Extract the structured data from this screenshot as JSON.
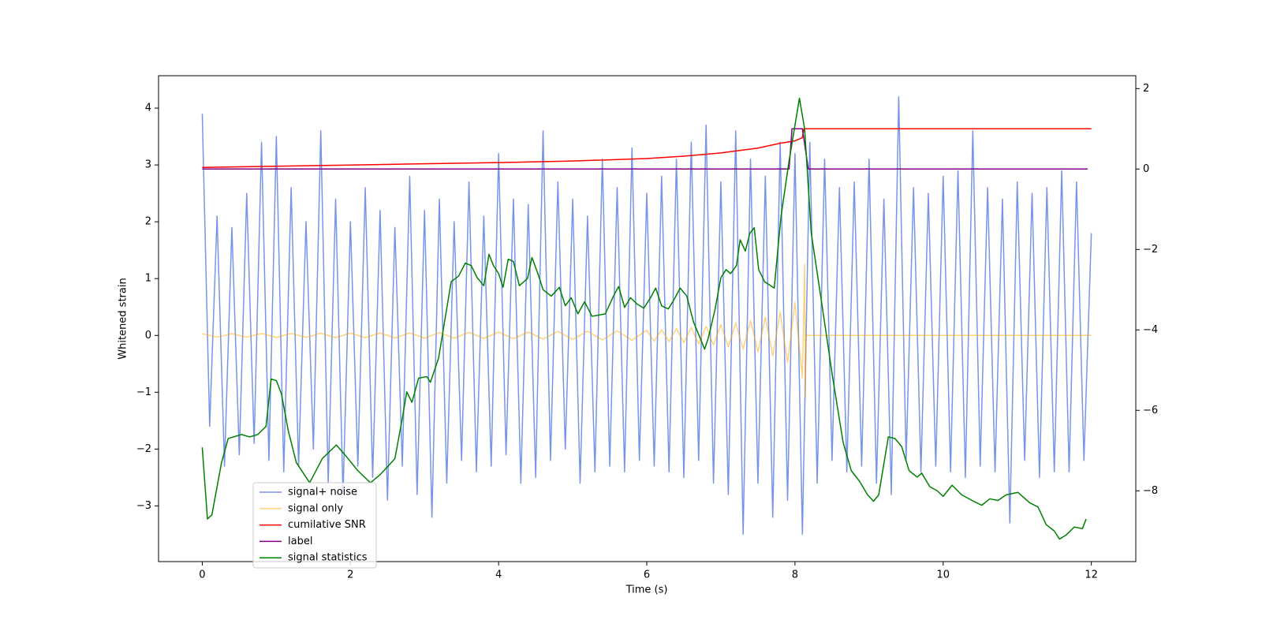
{
  "chart_data": {
    "type": "line",
    "xlabel": "Time (s)",
    "ylabel": "Whitened strain",
    "xlim": [
      -0.59,
      12.6
    ],
    "ylim": [
      -3.98,
      4.57
    ],
    "y2lim": [
      -9.76,
      2.32
    ],
    "xticks": [
      0,
      2,
      4,
      6,
      8,
      10,
      12
    ],
    "yticks": [
      {
        "value": -3,
        "label": "−3"
      },
      {
        "value": -2,
        "label": "−2"
      },
      {
        "value": -1,
        "label": "−1"
      },
      0,
      1,
      2,
      3,
      4
    ],
    "y2ticks": [
      {
        "value": -8,
        "label": "−8"
      },
      {
        "value": -6,
        "label": "−6"
      },
      {
        "value": -4,
        "label": "−4"
      },
      {
        "value": -2,
        "label": "−2"
      },
      0,
      2
    ],
    "legend": "lower left",
    "series": [
      {
        "name": "signal+ noise",
        "color": "#7794e8",
        "x": [
          0,
          0.1,
          0.2,
          0.3,
          0.4,
          0.5,
          0.6,
          0.7,
          0.8,
          0.9,
          1,
          1.1,
          1.2,
          1.3,
          1.4,
          1.5,
          1.6,
          1.7,
          1.8,
          1.9,
          2,
          2.1,
          2.2,
          2.3,
          2.4,
          2.5,
          2.6,
          2.7,
          2.8,
          2.9,
          3,
          3.1,
          3.2,
          3.3,
          3.4,
          3.5,
          3.6,
          3.7,
          3.8,
          3.9,
          4,
          4.1,
          4.2,
          4.3,
          4.4,
          4.5,
          4.6,
          4.7,
          4.8,
          4.9,
          5,
          5.1,
          5.2,
          5.3,
          5.4,
          5.5,
          5.6,
          5.7,
          5.8,
          5.9,
          6,
          6.1,
          6.2,
          6.3,
          6.4,
          6.5,
          6.6,
          6.7,
          6.8,
          6.9,
          7,
          7.1,
          7.2,
          7.3,
          7.4,
          7.5,
          7.6,
          7.7,
          7.8,
          7.9,
          8,
          8.1,
          8.2,
          8.3,
          8.4,
          8.5,
          8.6,
          8.7,
          8.8,
          8.9,
          9,
          9.1,
          9.2,
          9.3,
          9.4,
          9.5,
          9.6,
          9.7,
          9.8,
          9.9,
          10,
          10.1,
          10.2,
          10.3,
          10.4,
          10.5,
          10.6,
          10.7,
          10.8,
          10.9,
          11,
          11.1,
          11.2,
          11.3,
          11.4,
          11.5,
          11.6,
          11.7,
          11.8,
          11.9,
          12
        ],
        "values": [
          3.9,
          -1.6,
          2.1,
          -2.3,
          1.9,
          -2.1,
          2.5,
          -1.9,
          3.4,
          -2.2,
          3.5,
          -2.4,
          2.6,
          -2.3,
          2.0,
          -2.0,
          3.6,
          -2.6,
          2.4,
          -2.8,
          2.0,
          -2.3,
          2.6,
          -2.5,
          2.2,
          -2.9,
          1.9,
          -2.3,
          2.8,
          -2.8,
          2.2,
          -3.2,
          2.4,
          -2.6,
          2.0,
          -2.2,
          2.7,
          -2.4,
          2.1,
          -2.3,
          3.2,
          -2.1,
          2.4,
          -2.6,
          2.3,
          -2.5,
          3.6,
          -2.2,
          2.7,
          -2.0,
          2.4,
          -2.6,
          2.1,
          -2.4,
          3.1,
          -2.3,
          2.6,
          -2.4,
          3.3,
          -2.2,
          2.5,
          -2.3,
          2.8,
          -2.4,
          3.1,
          -2.5,
          3.4,
          -2.2,
          3.7,
          -2.6,
          2.7,
          -2.8,
          3.6,
          -3.5,
          3.1,
          -2.6,
          2.8,
          -3.2,
          3.4,
          -2.9,
          3.2,
          -3.5,
          3.4,
          -2.6,
          3.1,
          -2.2,
          2.6,
          -2.4,
          2.7,
          -2.3,
          3.1,
          -2.6,
          2.4,
          -2.8,
          4.2,
          -2.2,
          2.6,
          -2.4,
          2.5,
          -2.3,
          2.8,
          -2.4,
          2.9,
          -2.5,
          3.6,
          -2.3,
          2.6,
          -2.4,
          2.4,
          -3.3,
          2.7,
          -2.2,
          2.5,
          -2.5,
          2.6,
          -2.4,
          2.9,
          -2.4,
          2.7,
          -2.2,
          1.8
        ]
      },
      {
        "name": "signal only",
        "color": "#ffa500",
        "x": [
          0,
          0.2,
          0.4,
          0.6,
          0.8,
          1,
          1.2,
          1.4,
          1.6,
          1.8,
          2,
          2.2,
          2.4,
          2.6,
          2.8,
          3,
          3.2,
          3.4,
          3.6,
          3.8,
          4,
          4.2,
          4.4,
          4.6,
          4.8,
          5,
          5.2,
          5.4,
          5.6,
          5.8,
          6,
          6.1,
          6.2,
          6.3,
          6.4,
          6.5,
          6.6,
          6.7,
          6.8,
          6.9,
          7,
          7.1,
          7.2,
          7.3,
          7.4,
          7.5,
          7.6,
          7.7,
          7.8,
          7.9,
          8,
          8.1,
          8.13,
          8.14,
          8.15,
          12
        ],
        "values": [
          0.03,
          -0.03,
          0.03,
          -0.03,
          0.035,
          -0.035,
          0.035,
          -0.035,
          0.04,
          -0.04,
          0.04,
          -0.04,
          0.045,
          -0.045,
          0.045,
          -0.05,
          0.05,
          -0.05,
          0.055,
          -0.055,
          0.06,
          -0.06,
          0.06,
          -0.065,
          0.07,
          -0.07,
          0.075,
          -0.08,
          0.08,
          -0.085,
          0.09,
          -0.1,
          0.1,
          -0.11,
          0.12,
          -0.13,
          0.14,
          -0.15,
          0.16,
          -0.17,
          0.19,
          -0.2,
          0.22,
          -0.24,
          0.26,
          -0.29,
          0.32,
          -0.36,
          0.41,
          -0.48,
          0.58,
          -0.75,
          1.25,
          -1.1,
          0,
          0
        ]
      },
      {
        "name": "cumilative SNR",
        "color": "#ff0000",
        "axis": "y2",
        "x": [
          0,
          1,
          2,
          3,
          4,
          5,
          6,
          6.5,
          7,
          7.5,
          7.8,
          8.0,
          8.1,
          8.12,
          12
        ],
        "values": [
          0.04,
          0.07,
          0.1,
          0.13,
          0.16,
          0.2,
          0.26,
          0.32,
          0.4,
          0.52,
          0.64,
          0.7,
          0.78,
          1.0,
          1.0
        ]
      },
      {
        "name": "label",
        "color": "#800080",
        "axis": "y2",
        "x": [
          0,
          7.92,
          7.96,
          8.1,
          8.18,
          11.95
        ],
        "values": [
          0,
          0,
          1,
          1,
          0,
          0
        ]
      },
      {
        "name": "signal statistics",
        "color": "#008000",
        "axis": "y2",
        "x": [
          0,
          0.07,
          0.13,
          0.26,
          0.35,
          0.53,
          0.64,
          0.75,
          0.86,
          0.93,
          1.0,
          1.07,
          1.16,
          1.27,
          1.45,
          1.62,
          1.81,
          1.95,
          2.1,
          2.27,
          2.4,
          2.6,
          2.7,
          2.76,
          2.83,
          2.92,
          3.03,
          3.08,
          3.19,
          3.27,
          3.36,
          3.46,
          3.55,
          3.63,
          3.71,
          3.8,
          3.87,
          3.93,
          4.0,
          4.06,
          4.13,
          4.2,
          4.28,
          4.39,
          4.45,
          4.53,
          4.6,
          4.71,
          4.82,
          4.9,
          4.98,
          5.07,
          5.16,
          5.26,
          5.33,
          5.44,
          5.55,
          5.62,
          5.7,
          5.78,
          5.87,
          5.96,
          6.05,
          6.12,
          6.2,
          6.29,
          6.37,
          6.45,
          6.54,
          6.63,
          6.72,
          6.78,
          6.83,
          6.92,
          7.0,
          7.07,
          7.13,
          7.21,
          7.26,
          7.33,
          7.39,
          7.45,
          7.51,
          7.59,
          7.72,
          7.81,
          7.92,
          8.06,
          8.13,
          8.22,
          8.35,
          8.51,
          8.65,
          8.76,
          8.87,
          8.98,
          9.06,
          9.13,
          9.26,
          9.35,
          9.44,
          9.54,
          9.65,
          9.71,
          9.82,
          9.92,
          10.0,
          10.12,
          10.25,
          10.39,
          10.52,
          10.63,
          10.74,
          10.85,
          11.01,
          11.17,
          11.28,
          11.39,
          11.5,
          11.57,
          11.66,
          11.77,
          11.88,
          11.93
        ],
        "values": [
          -6.92,
          -8.7,
          -8.6,
          -7.3,
          -6.7,
          -6.6,
          -6.66,
          -6.6,
          -6.4,
          -5.22,
          -5.26,
          -5.6,
          -6.5,
          -7.3,
          -7.8,
          -7.2,
          -6.86,
          -7.16,
          -7.5,
          -7.8,
          -7.6,
          -7.2,
          -6.2,
          -5.54,
          -5.8,
          -5.2,
          -5.16,
          -5.3,
          -4.7,
          -3.8,
          -2.8,
          -2.66,
          -2.34,
          -2.4,
          -2.7,
          -2.9,
          -2.12,
          -2.4,
          -2.6,
          -2.94,
          -2.24,
          -2.3,
          -2.9,
          -2.72,
          -2.2,
          -2.6,
          -3.0,
          -3.16,
          -2.94,
          -3.4,
          -3.2,
          -3.6,
          -3.3,
          -3.66,
          -3.64,
          -3.6,
          -3.16,
          -2.92,
          -3.44,
          -3.2,
          -3.36,
          -3.46,
          -3.2,
          -2.96,
          -3.4,
          -3.48,
          -3.24,
          -2.96,
          -3.16,
          -3.8,
          -4.2,
          -4.48,
          -4.2,
          -3.5,
          -2.7,
          -2.5,
          -2.6,
          -2.4,
          -1.76,
          -2.04,
          -1.6,
          -1.46,
          -2.5,
          -2.8,
          -2.96,
          -1.2,
          0.2,
          1.76,
          1.0,
          -1.6,
          -3.2,
          -5.2,
          -6.8,
          -7.5,
          -7.76,
          -8.1,
          -8.26,
          -8.1,
          -6.66,
          -6.7,
          -6.9,
          -7.5,
          -7.66,
          -7.56,
          -7.9,
          -8.0,
          -8.14,
          -7.86,
          -8.1,
          -8.24,
          -8.36,
          -8.2,
          -8.24,
          -8.1,
          -8.04,
          -8.3,
          -8.4,
          -8.84,
          -9.0,
          -9.2,
          -9.1,
          -8.9,
          -8.94,
          -8.7
        ]
      }
    ]
  }
}
